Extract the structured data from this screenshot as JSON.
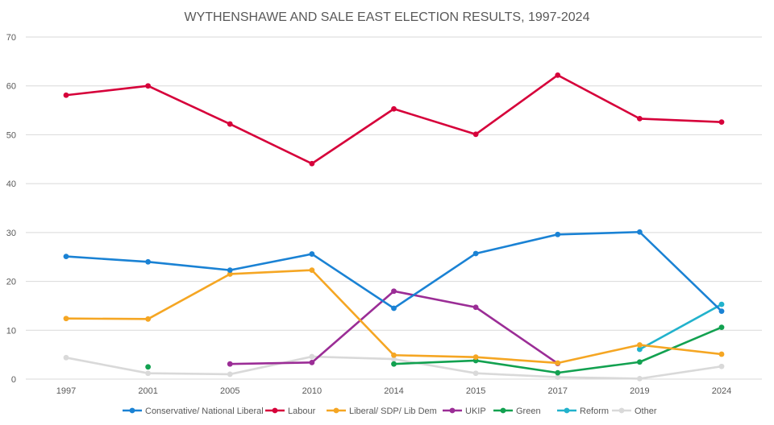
{
  "chart_data": {
    "type": "line",
    "title": "WYTHENSHAWE AND SALE EAST ELECTION RESULTS, 1997-2024",
    "xlabel": "",
    "ylabel": "",
    "categories": [
      "1997",
      "2001",
      "2005",
      "2010",
      "2014",
      "2015",
      "2017",
      "2019",
      "2024"
    ],
    "ylim": [
      0,
      70
    ],
    "yticks": [
      "0",
      "10",
      "20",
      "30",
      "40",
      "50",
      "60",
      "70"
    ],
    "grid": true,
    "legend_position": "bottom",
    "series": [
      {
        "name": "Conservative/ National Liberal",
        "color": "#1a82d4",
        "values": [
          25.1,
          24.0,
          22.3,
          25.6,
          14.5,
          25.7,
          29.6,
          30.1,
          13.9
        ]
      },
      {
        "name": "Labour",
        "color": "#d6003a",
        "values": [
          58.1,
          60.0,
          52.2,
          44.1,
          55.3,
          50.1,
          62.2,
          53.3,
          52.6
        ]
      },
      {
        "name": "Liberal/ SDP/ Lib  Dem",
        "color": "#f5a623",
        "values": [
          12.4,
          12.3,
          21.5,
          22.3,
          4.9,
          4.5,
          3.3,
          7.0,
          5.1
        ]
      },
      {
        "name": "UKIP",
        "color": "#9b2d96",
        "values": [
          null,
          null,
          3.1,
          3.4,
          18.0,
          14.7,
          3.2,
          null,
          null
        ]
      },
      {
        "name": "Green",
        "color": "#12a150",
        "values": [
          null,
          2.5,
          null,
          null,
          3.1,
          3.8,
          1.3,
          3.5,
          10.6
        ]
      },
      {
        "name": "Reform",
        "color": "#22b2cc",
        "values": [
          null,
          null,
          null,
          null,
          null,
          null,
          null,
          6.1,
          15.3
        ]
      },
      {
        "name": "Other",
        "color": "#d9d9d9",
        "values": [
          4.4,
          1.2,
          1.0,
          4.6,
          4.1,
          1.2,
          0.4,
          0.1,
          2.6
        ]
      }
    ]
  }
}
